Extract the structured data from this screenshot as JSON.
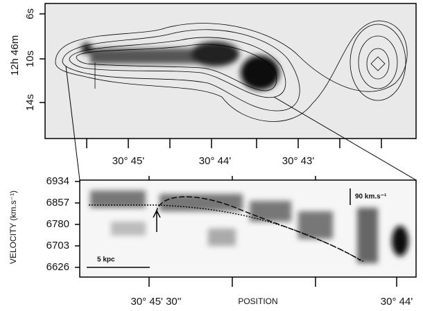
{
  "top_panel": {
    "y_label": "12h 46m",
    "y_ticks": [
      "6s",
      "10s",
      "14s"
    ],
    "x_ticks": [
      "30° 45'",
      "30° 44'",
      "30° 43'"
    ]
  },
  "bottom_panel": {
    "y_label": "VELOCITY (km.s⁻¹)",
    "y_ticks": [
      "6934",
      "6857",
      "6780",
      "6703",
      "6626"
    ],
    "x_ticks": [
      "30° 45' 30''",
      "30° 44'"
    ],
    "x_label": "POSITION",
    "scale_bar": "5 kpc",
    "velocity_bar": "90 km.s⁻¹"
  }
}
